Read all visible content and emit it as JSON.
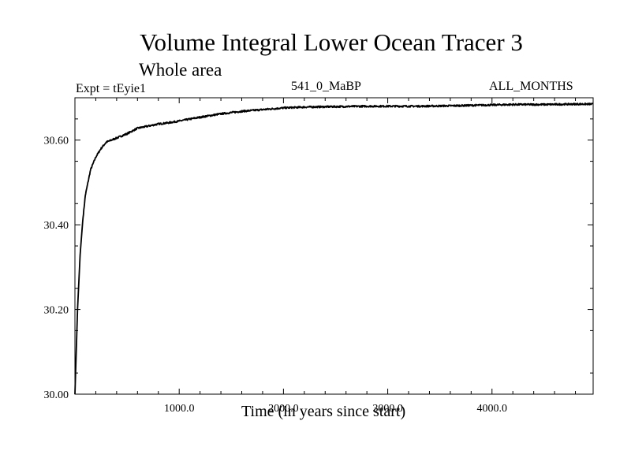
{
  "chart_data": {
    "type": "line",
    "title": "Volume Integral Lower Ocean Tracer 3",
    "subtitle": "Whole area",
    "annotations": {
      "experiment": "Expt = tEyie1",
      "period": "541_0_MaBP",
      "months": "ALL_MONTHS"
    },
    "xlabel": "Time (in years since start)",
    "ylabel": "",
    "xlim": [
      0,
      4970
    ],
    "ylim": [
      30.0,
      30.7
    ],
    "xticks": [
      {
        "value": 1000,
        "label": "1000.0"
      },
      {
        "value": 2000,
        "label": "2000.0"
      },
      {
        "value": 3000,
        "label": "3000.0"
      },
      {
        "value": 4000,
        "label": "4000.0"
      }
    ],
    "yticks": [
      {
        "value": 30.0,
        "label": "30.00"
      },
      {
        "value": 30.2,
        "label": "30.20"
      },
      {
        "value": 30.4,
        "label": "30.40"
      },
      {
        "value": 30.6,
        "label": "30.60"
      }
    ],
    "grid": false,
    "series": [
      {
        "name": "Lower Ocean Tracer 3",
        "x": [
          0,
          10,
          25,
          50,
          75,
          100,
          150,
          200,
          250,
          300,
          400,
          500,
          600,
          700,
          800,
          900,
          1000,
          1200,
          1400,
          1600,
          1800,
          2000,
          2200,
          2500,
          2800,
          3000,
          3300,
          3600,
          4000,
          4200,
          4500,
          4800,
          4970
        ],
        "values": [
          30.0,
          30.08,
          30.2,
          30.33,
          30.41,
          30.47,
          30.53,
          30.56,
          30.58,
          30.595,
          30.605,
          30.615,
          30.628,
          30.633,
          30.638,
          30.641,
          30.645,
          30.654,
          30.662,
          30.668,
          30.672,
          30.676,
          30.678,
          30.679,
          30.68,
          30.68,
          30.68,
          30.681,
          30.683,
          30.684,
          30.684,
          30.685,
          30.685
        ]
      }
    ]
  }
}
